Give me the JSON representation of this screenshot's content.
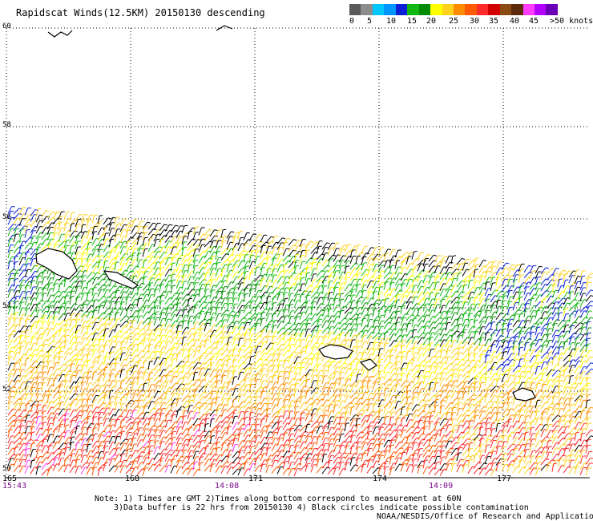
{
  "title": "Rapidscat Winds(12.5KM) 20150130 descending",
  "legend": {
    "colors": [
      "#5a5a5a",
      "#8c8c8c",
      "#00c8ff",
      "#0096ff",
      "#0a1fd6",
      "#11b811",
      "#008c00",
      "#ffff00",
      "#ffd21e",
      "#ff8c00",
      "#ff5a00",
      "#ff2a2a",
      "#d20000",
      "#8c4a14",
      "#5a2a0a",
      "#ff3cff",
      "#b400ff",
      "#6a00b4"
    ],
    "labels": [
      "0",
      "5",
      "10",
      "15",
      "20",
      "25",
      "30",
      "35",
      "40",
      "45",
      ">50 knots"
    ]
  },
  "latitudes": [
    "60",
    "58",
    "56",
    "54",
    "52",
    "50"
  ],
  "longitudes": [
    "165",
    "168",
    "171",
    "174",
    "177"
  ],
  "times": [
    "15:43",
    "14:08",
    "14:09"
  ],
  "notes": [
    "Note: 1) Times are GMT 2)Times along bottom correspond to measurement at 60N",
    "3)Data buffer is 22 hrs from 20150130 4) Black circles indicate possible contamination"
  ],
  "credit": "NOAA/NESDIS/Office of Research and Applications"
}
